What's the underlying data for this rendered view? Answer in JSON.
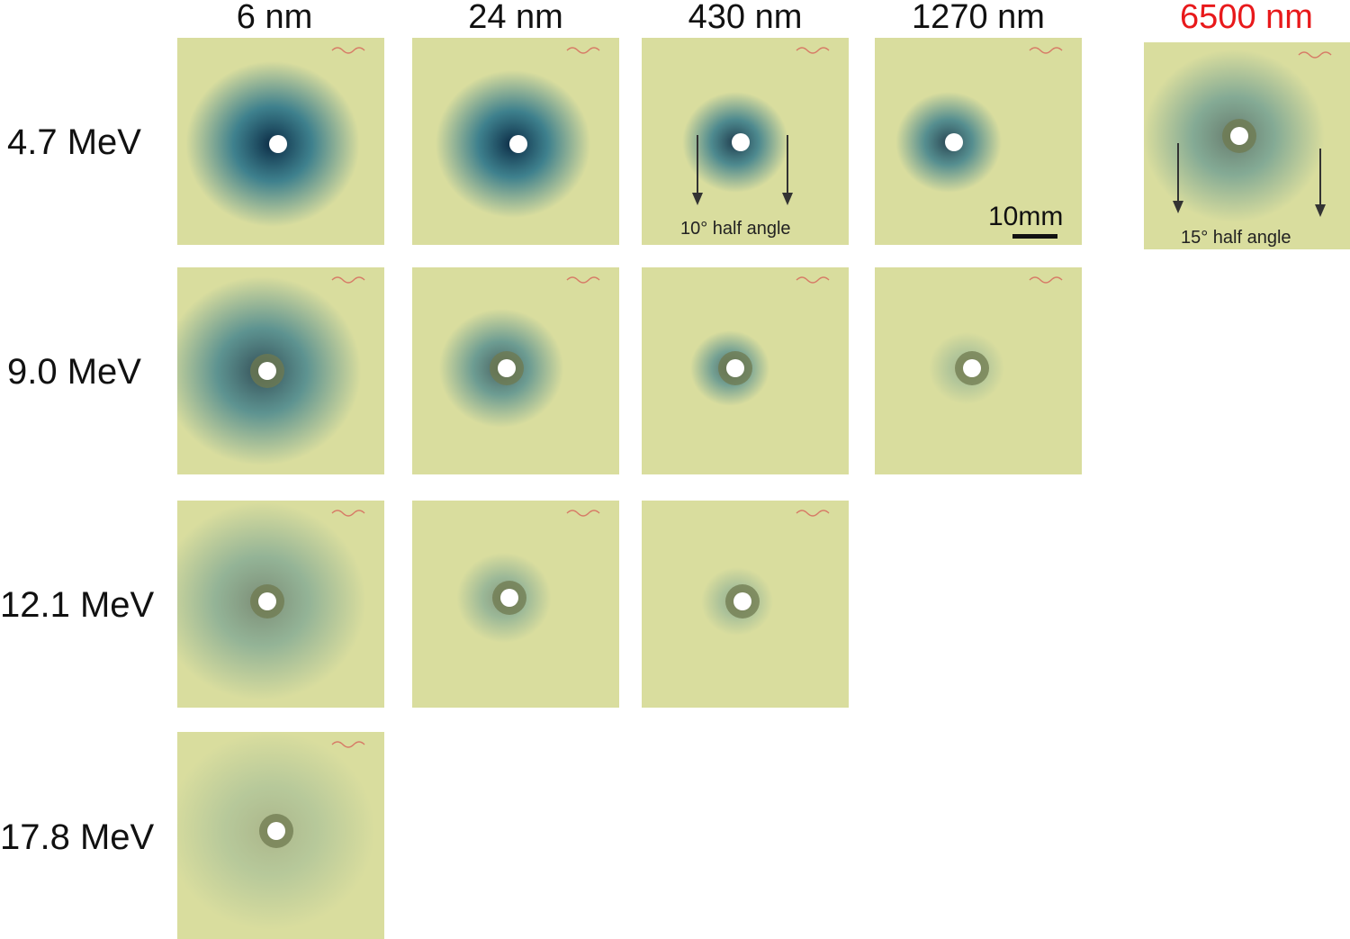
{
  "columns": [
    {
      "label": "6 nm",
      "color": "#111111"
    },
    {
      "label": "24 nm",
      "color": "#111111"
    },
    {
      "label": "430 nm",
      "color": "#111111"
    },
    {
      "label": "1270 nm",
      "color": "#111111"
    },
    {
      "label": "6500 nm",
      "color": "#e8191b"
    }
  ],
  "rows": [
    {
      "label": "4.7 MeV"
    },
    {
      "label": "9.0 MeV"
    },
    {
      "label": "12.1 MeV"
    },
    {
      "label": "17.8 MeV"
    }
  ],
  "annotations": {
    "angle_10": "10° half angle",
    "angle_15": "15° half angle",
    "scale_bar": "10mm"
  },
  "colors": {
    "film_background": "#d9dd9e",
    "dose_dark": "#0b2a44",
    "dose_mid": "#23708a",
    "handwriting": "#d6504f"
  }
}
